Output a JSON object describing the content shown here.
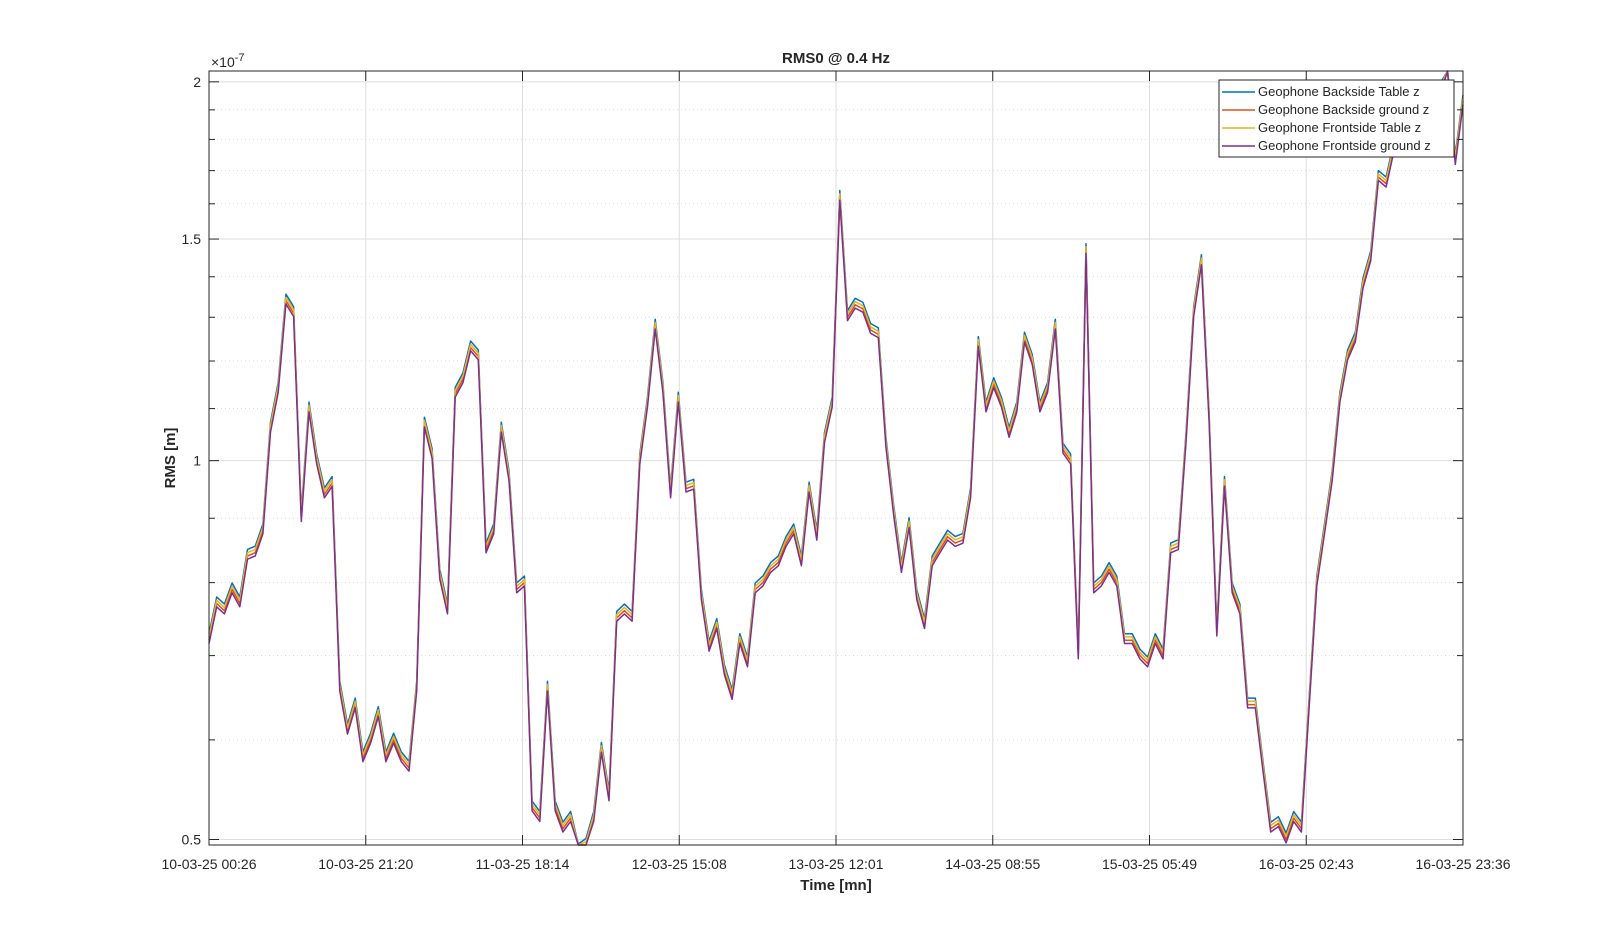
{
  "chart_data": {
    "type": "line",
    "title": "RMS0 @ 0.4 Hz",
    "xlabel": "Time [mn]",
    "ylabel": "RMS [m]",
    "y_exponent_label": "×10",
    "y_exponent_power": "-7",
    "y_scale": "log",
    "ylim": [
      0.495,
      2.04
    ],
    "yticks": [
      0.5,
      1,
      1.5,
      2
    ],
    "ytick_labels": [
      "0.5",
      "1",
      "1.5",
      "2"
    ],
    "y_minor_ticks": [
      0.6,
      0.7,
      0.8,
      0.9,
      1.1,
      1.2,
      1.3,
      1.4,
      1.6,
      1.7,
      1.8,
      1.9
    ],
    "x_tick_labels": [
      "10-03-25 00:26",
      "10-03-25 21:20",
      "11-03-25 18:14",
      "12-03-25 15:08",
      "13-03-25 12:01",
      "14-03-25 08:55",
      "15-03-25 05:49",
      "16-03-25 02:43",
      "16-03-25 23:36"
    ],
    "grid": true,
    "legend_position": "top-right",
    "series": [
      {
        "name": "Geophone Backside Table z",
        "color": "#0072BD",
        "offset": 0.012
      },
      {
        "name": "Geophone Backside ground z",
        "color": "#D95319",
        "offset": 0.0
      },
      {
        "name": "Geophone Frontside Table z",
        "color": "#EDB120",
        "offset": 0.006
      },
      {
        "name": "Geophone Frontside ground z",
        "color": "#7E2F8E",
        "offset": -0.006
      }
    ],
    "base_values": [
      0.72,
      0.77,
      0.76,
      0.79,
      0.77,
      0.84,
      0.845,
      0.88,
      1.06,
      1.14,
      1.34,
      1.31,
      0.9,
      1.1,
      1.0,
      0.94,
      0.96,
      0.66,
      0.61,
      0.64,
      0.58,
      0.6,
      0.63,
      0.58,
      0.6,
      0.58,
      0.57,
      0.66,
      1.07,
      1.01,
      0.81,
      0.76,
      1.13,
      1.16,
      1.23,
      1.21,
      0.85,
      0.88,
      1.06,
      0.97,
      0.79,
      0.8,
      0.53,
      0.52,
      0.66,
      0.53,
      0.51,
      0.52,
      0.49,
      0.495,
      0.52,
      0.59,
      0.54,
      0.75,
      0.76,
      0.75,
      1.0,
      1.11,
      1.28,
      1.14,
      0.94,
      1.12,
      0.95,
      0.955,
      0.78,
      0.71,
      0.74,
      0.68,
      0.65,
      0.72,
      0.69,
      0.79,
      0.8,
      0.82,
      0.83,
      0.86,
      0.88,
      0.83,
      0.95,
      0.87,
      1.04,
      1.11,
      1.62,
      1.3,
      1.33,
      1.32,
      1.27,
      1.26,
      1.03,
      0.91,
      0.82,
      0.89,
      0.78,
      0.74,
      0.83,
      0.85,
      0.87,
      0.86,
      0.865,
      0.94,
      1.24,
      1.1,
      1.15,
      1.11,
      1.05,
      1.1,
      1.25,
      1.2,
      1.1,
      1.14,
      1.28,
      1.02,
      1.0,
      0.7,
      1.47,
      0.79,
      0.8,
      0.82,
      0.8,
      0.72,
      0.72,
      0.7,
      0.69,
      0.72,
      0.7,
      0.85,
      0.855,
      1.04,
      1.31,
      1.44,
      1.08,
      0.73,
      0.96,
      0.79,
      0.76,
      0.64,
      0.64,
      0.57,
      0.51,
      0.515,
      0.5,
      0.52,
      0.51,
      0.64,
      0.8,
      0.88,
      0.97,
      1.12,
      1.21,
      1.25,
      1.38,
      1.45,
      1.68,
      1.66,
      1.77,
      1.85,
      1.87,
      1.92,
      1.8,
      1.85,
      1.97,
      2.05,
      1.73,
      1.93
    ]
  }
}
